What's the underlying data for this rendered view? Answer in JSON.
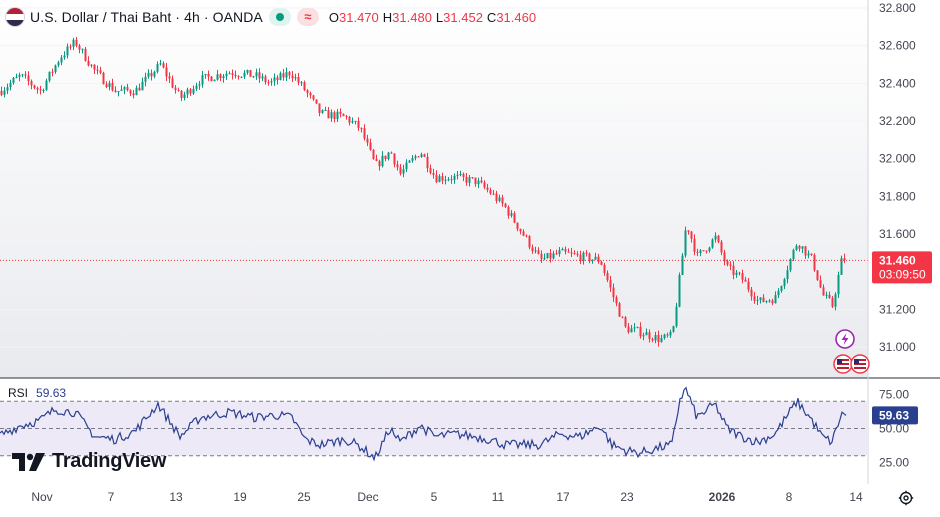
{
  "header": {
    "symbol_title": "U.S. Dollar / Thai Baht · 4h · OANDA",
    "flag_icon": "usd-thb-flag-icon",
    "status_icon": "market-open-dot-icon",
    "wave_icon": "wave-icon",
    "ohlc": [
      {
        "key": "O",
        "value": "31.470"
      },
      {
        "key": "H",
        "value": "31.480"
      },
      {
        "key": "L",
        "value": "31.452"
      },
      {
        "key": "C",
        "value": "31.460"
      }
    ]
  },
  "colors": {
    "up": "#089981",
    "down": "#f23645",
    "rsi_line": "#2a3f8f",
    "rsi_band": "#ede9f7",
    "price_line": "#f23645",
    "axis_text": "#434651",
    "grid": "#f0f3fa"
  },
  "price_axis": {
    "ticks": [
      "32.800",
      "32.600",
      "32.400",
      "32.200",
      "32.000",
      "31.800",
      "31.600",
      "31.400",
      "31.200",
      "31.000"
    ],
    "current_price": "31.460",
    "countdown": "03:09:50"
  },
  "rsi": {
    "label": "RSI",
    "value": "59.63",
    "ticks": [
      "75.00",
      "50.00",
      "25.00"
    ]
  },
  "time_axis": {
    "labels": [
      "Nov",
      "7",
      "13",
      "19",
      "25",
      "Dec",
      "5",
      "11",
      "17",
      "23",
      "2026",
      "8",
      "14"
    ]
  },
  "logo": {
    "text": "TradingView"
  },
  "icons": {
    "event_icon": "lightning-icon",
    "earnings_flags": "us-flag-icon",
    "settings_icon": "gear-icon"
  },
  "chart_data": [
    {
      "type": "candlestick",
      "series": [
        {
          "name": "",
          "close_path": [
            [
              0,
              32.36
            ],
            [
              20,
              32.44
            ],
            [
              40,
              32.36
            ],
            [
              60,
              32.54
            ],
            [
              75,
              32.62
            ],
            [
              95,
              32.46
            ],
            [
              115,
              32.36
            ],
            [
              135,
              32.36
            ],
            [
              160,
              32.5
            ],
            [
              180,
              32.32
            ],
            [
              200,
              32.42
            ],
            [
              230,
              32.46
            ],
            [
              255,
              32.44
            ],
            [
              270,
              32.4
            ],
            [
              290,
              32.46
            ],
            [
              305,
              32.36
            ],
            [
              320,
              32.24
            ],
            [
              345,
              32.22
            ],
            [
              360,
              32.16
            ],
            [
              375,
              31.96
            ],
            [
              390,
              32.04
            ],
            [
              400,
              31.92
            ],
            [
              420,
              32.04
            ],
            [
              435,
              31.9
            ],
            [
              455,
              31.9
            ],
            [
              475,
              31.88
            ],
            [
              490,
              31.82
            ],
            [
              505,
              31.74
            ],
            [
              520,
              31.62
            ],
            [
              540,
              31.46
            ],
            [
              560,
              31.5
            ],
            [
              580,
              31.48
            ],
            [
              600,
              31.46
            ],
            [
              612,
              31.28
            ],
            [
              625,
              31.1
            ],
            [
              640,
              31.08
            ],
            [
              660,
              31.04
            ],
            [
              672,
              31.06
            ],
            [
              680,
              31.4
            ],
            [
              686,
              31.66
            ],
            [
              697,
              31.48
            ],
            [
              715,
              31.58
            ],
            [
              727,
              31.42
            ],
            [
              742,
              31.36
            ],
            [
              758,
              31.24
            ],
            [
              775,
              31.26
            ],
            [
              797,
              31.56
            ],
            [
              812,
              31.46
            ],
            [
              822,
              31.28
            ],
            [
              832,
              31.22
            ],
            [
              842,
              31.48
            ],
            [
              846,
              31.46
            ]
          ]
        }
      ],
      "ylim": [
        30.9,
        32.8
      ],
      "xlabels": [
        "Nov",
        "7",
        "13",
        "19",
        "25",
        "Dec",
        "5",
        "11",
        "17",
        "23",
        "2026",
        "8",
        "14"
      ],
      "ylabels": [
        "32.800",
        "32.600",
        "32.400",
        "32.200",
        "32.000",
        "31.800",
        "31.600",
        "31.400",
        "31.200",
        "31.000"
      ],
      "last_price": 31.46
    },
    {
      "type": "line",
      "series": [
        {
          "name": "RSI",
          "points": [
            [
              0,
              45
            ],
            [
              20,
              52
            ],
            [
              40,
              56
            ],
            [
              55,
              64
            ],
            [
              75,
              62
            ],
            [
              95,
              44
            ],
            [
              115,
              42
            ],
            [
              135,
              48
            ],
            [
              158,
              68
            ],
            [
              180,
              44
            ],
            [
              200,
              58
            ],
            [
              230,
              62
            ],
            [
              255,
              58
            ],
            [
              275,
              60
            ],
            [
              292,
              58
            ],
            [
              305,
              42
            ],
            [
              320,
              38
            ],
            [
              345,
              42
            ],
            [
              360,
              37
            ],
            [
              375,
              28
            ],
            [
              390,
              50
            ],
            [
              400,
              40
            ],
            [
              420,
              52
            ],
            [
              435,
              44
            ],
            [
              455,
              46
            ],
            [
              475,
              44
            ],
            [
              490,
              42
            ],
            [
              505,
              38
            ],
            [
              520,
              38
            ],
            [
              540,
              38
            ],
            [
              560,
              46
            ],
            [
              580,
              44
            ],
            [
              600,
              52
            ],
            [
              612,
              38
            ],
            [
              625,
              34
            ],
            [
              640,
              32
            ],
            [
              660,
              36
            ],
            [
              672,
              38
            ],
            [
              680,
              72
            ],
            [
              686,
              79
            ],
            [
              697,
              58
            ],
            [
              715,
              68
            ],
            [
              727,
              50
            ],
            [
              742,
              44
            ],
            [
              758,
              40
            ],
            [
              775,
              46
            ],
            [
              797,
              70
            ],
            [
              812,
              56
            ],
            [
              822,
              44
            ],
            [
              832,
              40
            ],
            [
              842,
              62
            ],
            [
              846,
              59.63
            ]
          ]
        }
      ],
      "ylim": [
        14,
        86
      ],
      "levels": [
        70,
        50,
        30
      ],
      "ylabels": [
        "75.00",
        "50.00",
        "25.00"
      ],
      "last_value": 59.63
    }
  ]
}
